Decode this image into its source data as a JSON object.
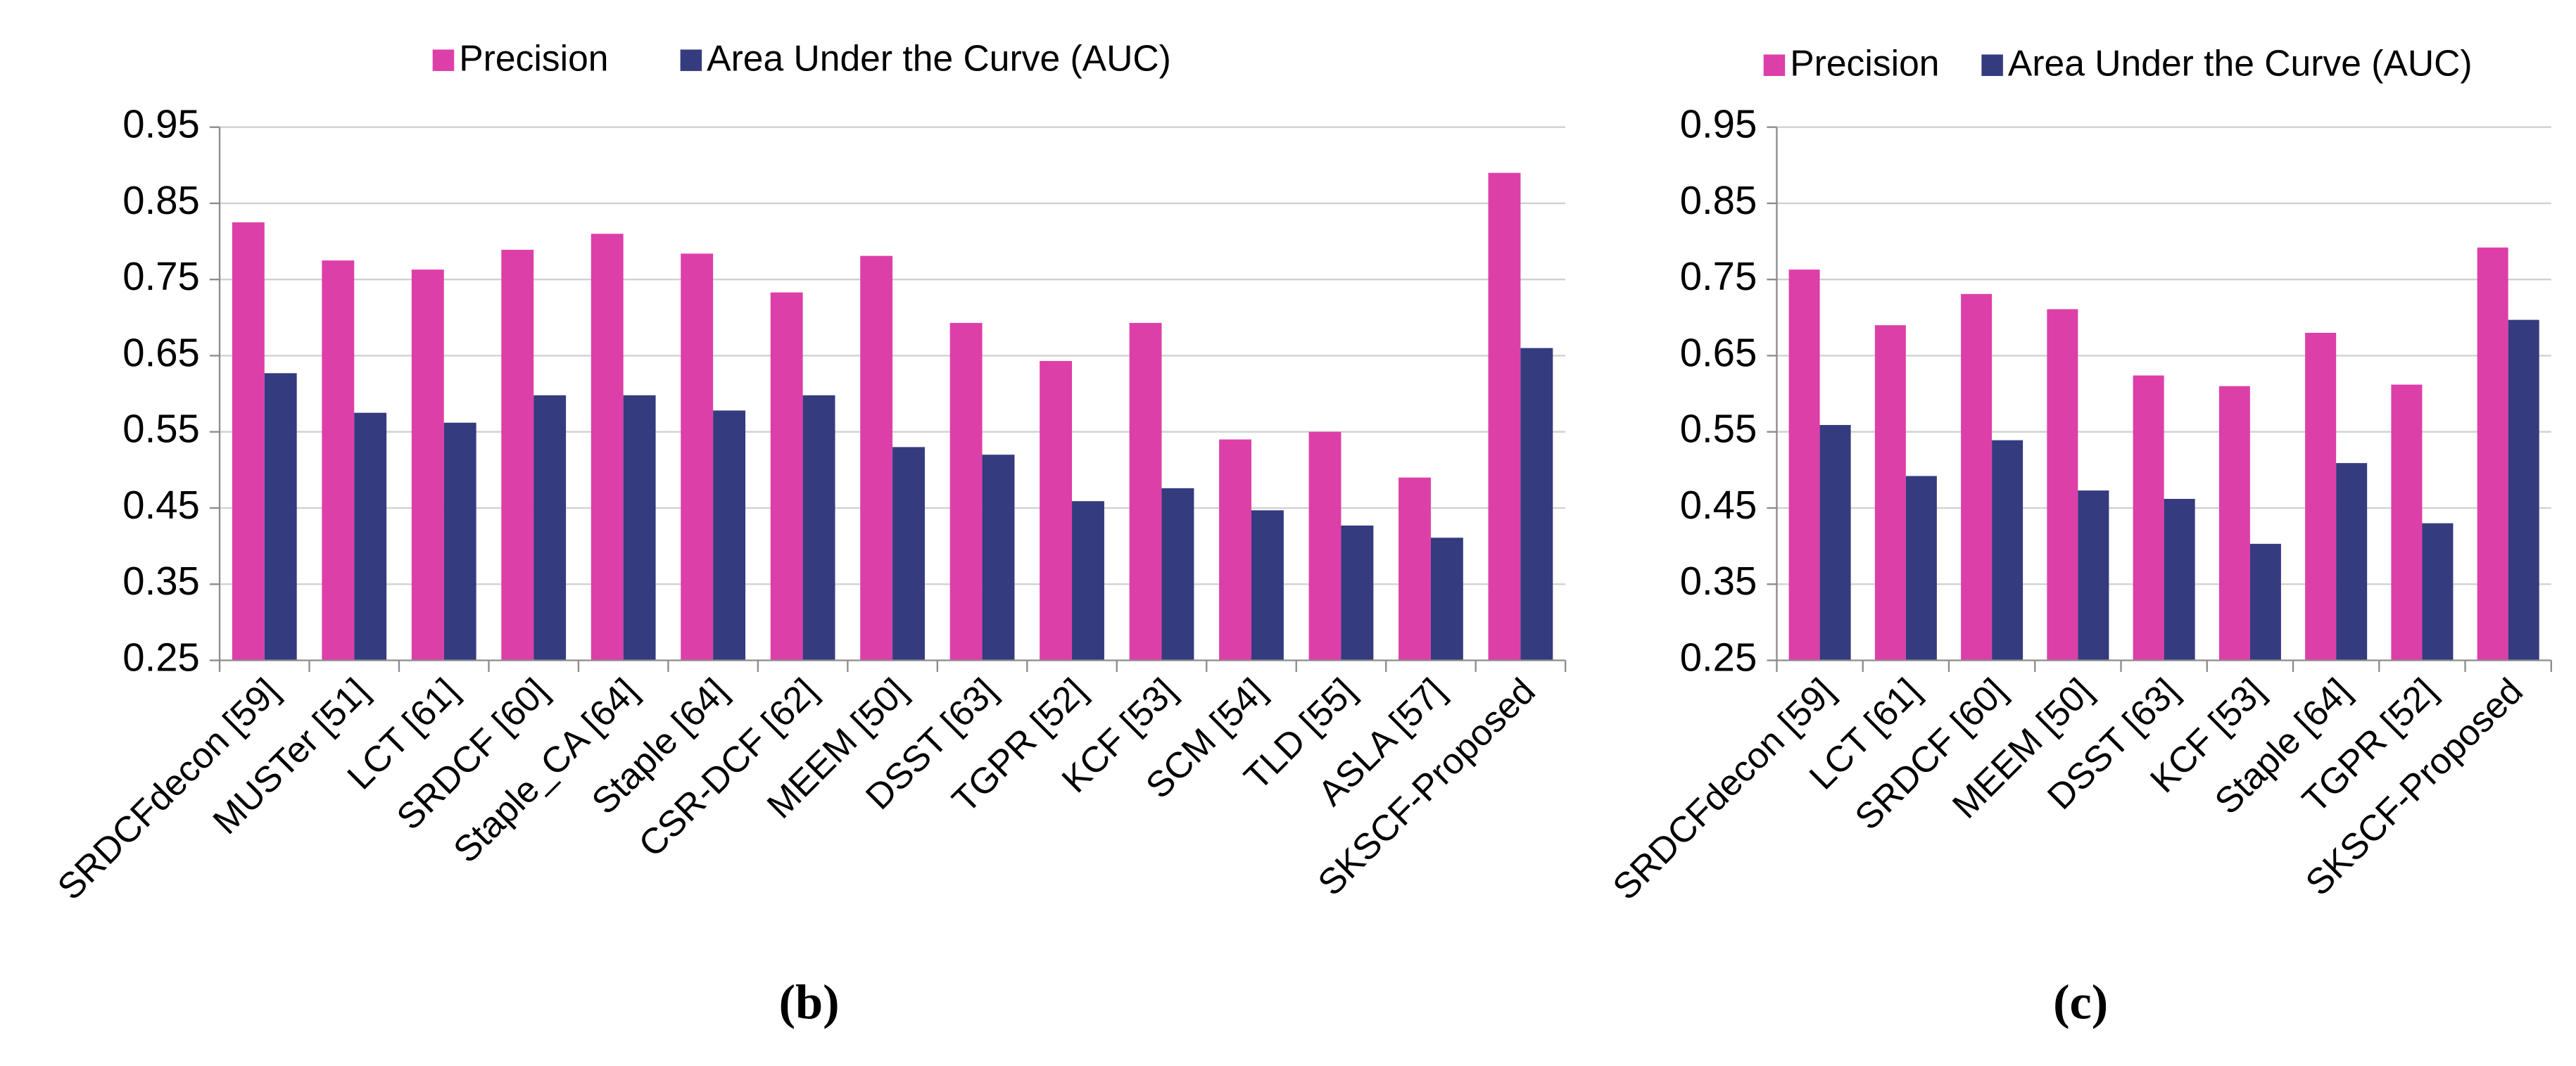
{
  "chart_data": [
    {
      "type": "bar",
      "caption": "(b)",
      "categories": [
        "SRDCFdecon [59]",
        "MUSTer [51]",
        "LCT [61]",
        "SRDCF [60]",
        "Staple_CA [64]",
        "Staple [64]",
        "CSR-DCF [62]",
        "MEEM [50]",
        "DSST [63]",
        "TGPR [52]",
        "KCF [53]",
        "SCM [54]",
        "TLD [55]",
        "ASLA [57]",
        "SKSCF-Proposed"
      ],
      "series": [
        {
          "name": "Precision",
          "color": "#dd3fa9",
          "values": [
            0.825,
            0.775,
            0.763,
            0.789,
            0.81,
            0.784,
            0.733,
            0.781,
            0.693,
            0.643,
            0.693,
            0.54,
            0.55,
            0.49,
            0.89
          ]
        },
        {
          "name": "Area Under the Curve (AUC)",
          "color": "#343b7f",
          "values": [
            0.627,
            0.575,
            0.562,
            0.598,
            0.598,
            0.578,
            0.598,
            0.53,
            0.52,
            0.459,
            0.476,
            0.447,
            0.427,
            0.411,
            0.66
          ]
        }
      ],
      "ylim": [
        0.25,
        0.95
      ],
      "yticks": [
        0.25,
        0.35,
        0.45,
        0.55,
        0.65,
        0.75,
        0.85,
        0.95
      ],
      "grid": true,
      "legend": "top"
    },
    {
      "type": "bar",
      "caption": "(c)",
      "categories": [
        "SRDCFdecon [59]",
        "LCT [61]",
        "SRDCF [60]",
        "MEEM [50]",
        "DSST [63]",
        "KCF [53]",
        "Staple [64]",
        "TGPR [52]",
        "SKSCF-Proposed"
      ],
      "series": [
        {
          "name": "Precision",
          "color": "#dd3fa9",
          "values": [
            0.763,
            0.69,
            0.731,
            0.711,
            0.624,
            0.61,
            0.68,
            0.612,
            0.792
          ]
        },
        {
          "name": "Area Under the Curve (AUC)",
          "color": "#343b7f",
          "values": [
            0.559,
            0.492,
            0.539,
            0.473,
            0.462,
            0.403,
            0.509,
            0.43,
            0.697
          ]
        }
      ],
      "ylim": [
        0.25,
        0.95
      ],
      "yticks": [
        0.25,
        0.35,
        0.45,
        0.55,
        0.65,
        0.75,
        0.85,
        0.95
      ],
      "grid": true,
      "legend": "top"
    }
  ]
}
